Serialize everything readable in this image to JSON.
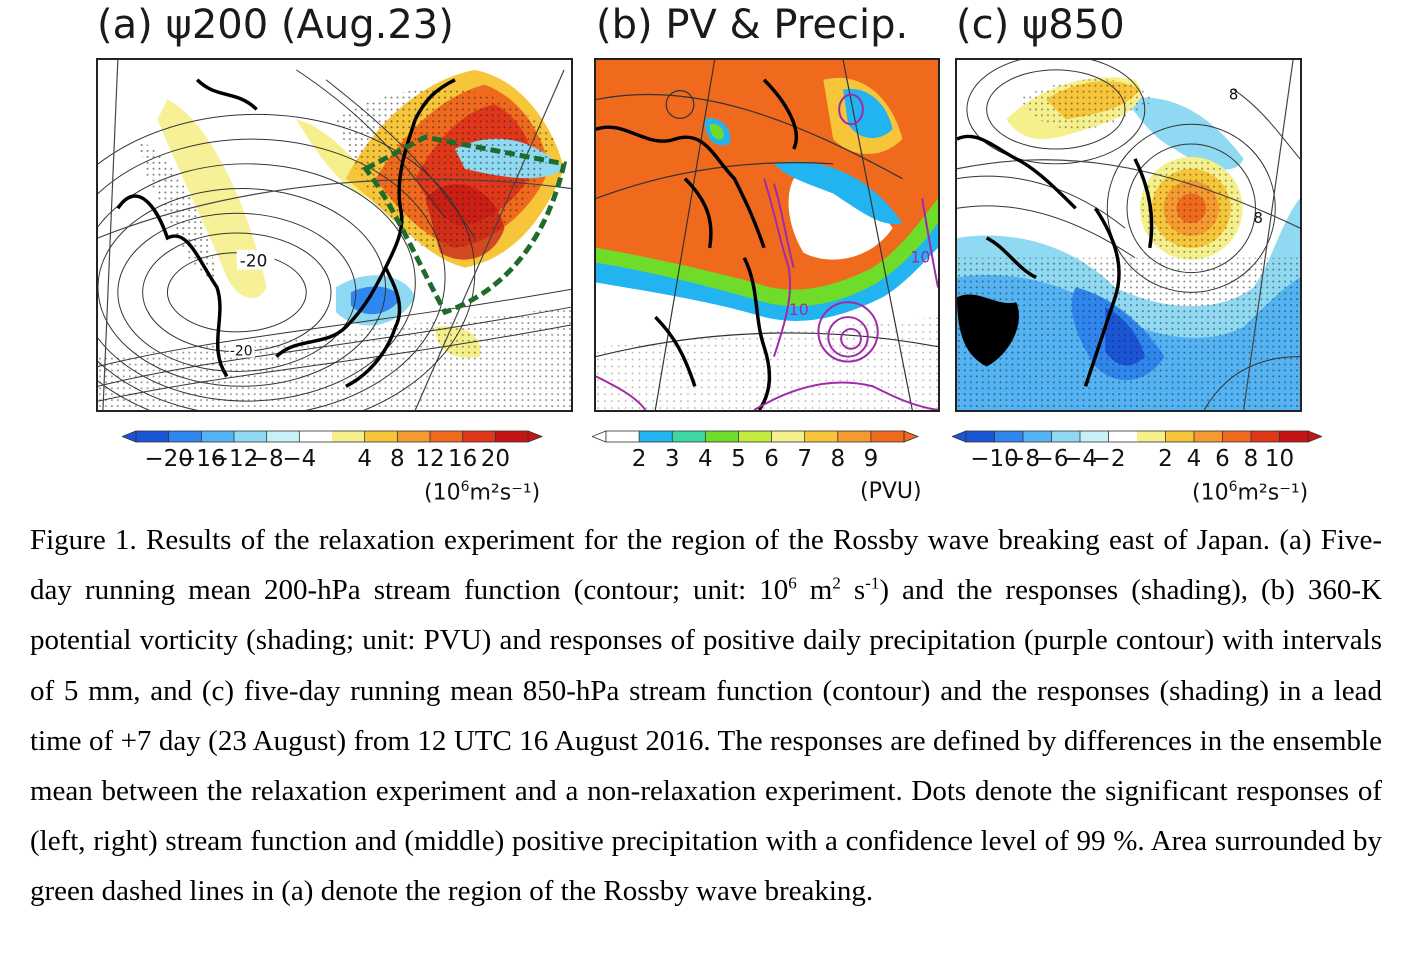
{
  "panels": [
    {
      "label": "(a) ψ200 (Aug.23)",
      "contour_labels": [
        "-20",
        "-20"
      ]
    },
    {
      "label": "(b) PV & Precip.",
      "contour_labels": [
        "10",
        "10"
      ]
    },
    {
      "label": "(c) ψ850",
      "contour_labels": [
        "8",
        "8"
      ]
    }
  ],
  "colorbars": [
    {
      "ticks": [
        "−20",
        "−16",
        "−12",
        "−8",
        "−4",
        "4",
        "8",
        "12",
        "16",
        "20"
      ],
      "unit_base": "(10",
      "unit_exp": "6",
      "unit_rest": "m²s⁻¹)",
      "colors": [
        "#1a55d8",
        "#2f86ee",
        "#54b3f2",
        "#8fd9f2",
        "#c9f1f5",
        "#ffffff",
        "#f5f08c",
        "#f7c53a",
        "#f59a2e",
        "#f06a1e",
        "#e0371a",
        "#c41414"
      ]
    },
    {
      "ticks": [
        "2",
        "3",
        "4",
        "5",
        "6",
        "7",
        "8",
        "9"
      ],
      "unit": "(PVU)",
      "colors": [
        "#ffffff",
        "#22b4f0",
        "#3fd6a6",
        "#6fdc2a",
        "#c4ec3c",
        "#f5f08c",
        "#f7c53a",
        "#f59a2e",
        "#f06a1e"
      ]
    },
    {
      "ticks": [
        "−10",
        "−8",
        "−6",
        "−4",
        "−2",
        "2",
        "4",
        "6",
        "8",
        "10"
      ],
      "unit_base": "(10",
      "unit_exp": "6",
      "unit_rest": "m²s⁻¹)",
      "colors": [
        "#1a55d8",
        "#2f86ee",
        "#54b3f2",
        "#8fd9f2",
        "#c9f1f5",
        "#ffffff",
        "#f5f08c",
        "#f7c53a",
        "#f59a2e",
        "#f06a1e",
        "#e0371a",
        "#c41414"
      ]
    }
  ],
  "caption": {
    "p1": "Figure 1. Results of the relaxation experiment for the region of the Rossby wave breaking east of Japan. (a) Five-day running mean 200-hPa stream function (contour; unit: 10",
    "e1": "6",
    "p2": " m",
    "e2": "2",
    "p3": " s",
    "e3": "-1",
    "p4": ") and the responses (shading), (b) 360-K potential vorticity (shading; unit: PVU) and responses of positive daily precipitation (purple contour) with intervals of 5 mm, and (c) five-day running mean 850-hPa stream function (contour) and the responses (shading) in a lead time of +7 day (23 August) from 12 UTC 16 August 2016. The responses are defined by differences in the ensemble mean between the relaxation experiment and a non-relaxation experiment. Dots denote the significant responses of (left, right) stream function and (middle) positive precipitation with a confidence level of 99 %. Area surrounded by green dashed lines in (a) denote the region of the Rossby wave breaking."
  }
}
